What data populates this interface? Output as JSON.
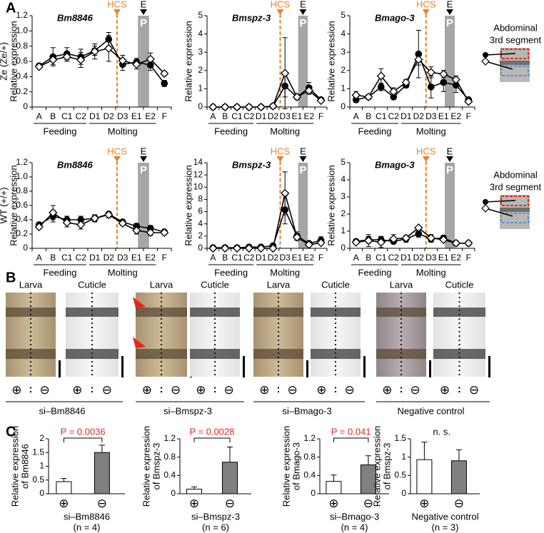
{
  "panels": [
    "A",
    "B",
    "C"
  ],
  "inset_label": [
    "Abdominal",
    "3rd segment"
  ],
  "panel_b": {
    "image_labels": [
      "Larva",
      "Cuticle"
    ],
    "signs": [
      "⊕",
      "⊖"
    ],
    "separator": ":",
    "groups": [
      "si–Bm8846",
      "si–Bmspz-3",
      "si–Bmago-3",
      "Negative control"
    ]
  },
  "chart_data": [
    {
      "type": "line",
      "title": "Bm8846",
      "ylabel": [
        "Ze (Ze/+)",
        "Relative expression"
      ],
      "categories": [
        "A",
        "B",
        "C1",
        "C2",
        "D1",
        "D2",
        "D3",
        "E1",
        "E2",
        "F"
      ],
      "groups": [
        {
          "label": "Feeding",
          "from": "A",
          "to": "C2"
        },
        {
          "label": "Molting",
          "from": "D1",
          "to": "E2"
        }
      ],
      "annotations": {
        "hcs": "HCS",
        "e": "E",
        "p": "P"
      },
      "ylim": [
        0,
        1.2
      ],
      "yticks": [
        0,
        0.2,
        0.4,
        0.6,
        0.8,
        {
          "value": 1,
          "label": "1.0"
        },
        1.2
      ],
      "series": [
        {
          "marker": "circle",
          "color": "#000000",
          "values": [
            0.54,
            0.66,
            0.7,
            0.66,
            0.74,
            0.89,
            0.56,
            0.59,
            0.55,
            0.31
          ],
          "errors": [
            0.03,
            0.12,
            0.08,
            0.1,
            0.06,
            0.09,
            0.08,
            0.05,
            0.07,
            0.04
          ]
        },
        {
          "marker": "diamond",
          "color": "#ffffff",
          "values": [
            0.53,
            0.62,
            0.66,
            0.62,
            0.73,
            0.77,
            0.61,
            0.56,
            0.63,
            0.44
          ],
          "errors": [
            0.02,
            0.06,
            0.06,
            0.1,
            0.1,
            0.17,
            0.07,
            0.06,
            0.08,
            0.03
          ]
        }
      ]
    },
    {
      "type": "line",
      "title": "Bmspz-3",
      "ylabel": [
        "Relative expression"
      ],
      "categories": [
        "A",
        "B",
        "C1",
        "C2",
        "D1",
        "D2",
        "D3",
        "E1",
        "E2",
        "F"
      ],
      "groups": [
        {
          "label": "Feeding",
          "from": "A",
          "to": "C2"
        },
        {
          "label": "Molting",
          "from": "D1",
          "to": "E2"
        }
      ],
      "annotations": {
        "hcs": "HCS",
        "e": "E",
        "p": "P"
      },
      "ylim": [
        0,
        5
      ],
      "yticks": [
        0,
        1,
        2,
        3,
        4,
        5
      ],
      "series": [
        {
          "marker": "circle",
          "color": "#000000",
          "values": [
            0,
            0,
            0,
            0,
            0,
            0.05,
            1.15,
            0.55,
            1.05,
            0.4
          ],
          "errors": [
            0,
            0,
            0,
            0,
            0,
            0.03,
            0.6,
            0.1,
            0.3,
            0.1
          ]
        },
        {
          "marker": "diamond",
          "color": "#ffffff",
          "values": [
            0,
            0,
            0,
            0,
            0,
            0.05,
            1.85,
            0.55,
            0.9,
            0.35
          ],
          "errors": [
            0,
            0,
            0,
            0,
            0,
            0.03,
            1.95,
            0.1,
            0.2,
            0.1
          ]
        }
      ]
    },
    {
      "type": "line",
      "title": "Bmago-3",
      "ylabel": [
        "Relative expression"
      ],
      "categories": [
        "A",
        "B",
        "C1",
        "C2",
        "D1",
        "D2",
        "D3",
        "E1",
        "E2",
        "F"
      ],
      "groups": [
        {
          "label": "Feeding",
          "from": "A",
          "to": "C2"
        },
        {
          "label": "Molting",
          "from": "D1",
          "to": "E2"
        }
      ],
      "annotations": {
        "hcs": "HCS",
        "e": "E",
        "p": "P"
      },
      "ylim": [
        0,
        5
      ],
      "yticks": [
        0,
        1,
        2,
        3,
        4,
        5
      ],
      "series": [
        {
          "marker": "circle",
          "color": "#000000",
          "values": [
            0.4,
            0.55,
            1.1,
            0.55,
            1.2,
            2.9,
            1.1,
            1.35,
            1.2,
            0.4
          ],
          "errors": [
            0.15,
            0.1,
            0.2,
            0.1,
            0.15,
            1.3,
            0.6,
            0.5,
            0.4,
            0.1
          ]
        },
        {
          "marker": "diamond",
          "color": "#ffffff",
          "values": [
            0.65,
            0.55,
            1.7,
            0.85,
            1.35,
            2.6,
            1.9,
            1.8,
            1.5,
            0.3
          ],
          "errors": [
            0.2,
            0.1,
            0.4,
            0.2,
            0.15,
            0.3,
            0.3,
            0.2,
            0.2,
            0.05
          ]
        }
      ]
    },
    {
      "type": "line",
      "title": "Bm8846",
      "ylabel": [
        "WT (+/+)",
        "Relative expression"
      ],
      "categories": [
        "A",
        "B",
        "C1",
        "C2",
        "D1",
        "D2",
        "D3",
        "E1",
        "E2",
        "F"
      ],
      "groups": [
        {
          "label": "Feeding",
          "from": "A",
          "to": "C2"
        },
        {
          "label": "Molting",
          "from": "D1",
          "to": "E2"
        }
      ],
      "annotations": {
        "hcs": "HCS",
        "e": "E",
        "p": "P"
      },
      "ylim": [
        0,
        1.2
      ],
      "yticks": [
        0,
        0.2,
        0.4,
        0.6,
        0.8,
        {
          "value": 1,
          "label": "1.0"
        },
        1.2
      ],
      "series": [
        {
          "marker": "circle",
          "color": "#000000",
          "values": [
            0.33,
            0.45,
            0.4,
            0.4,
            0.42,
            0.48,
            0.37,
            0.31,
            0.28,
            0.23
          ],
          "errors": [
            0.03,
            0.08,
            0.05,
            0.05,
            0.04,
            0.03,
            0.03,
            0.04,
            0.04,
            0.02
          ]
        },
        {
          "marker": "diamond",
          "color": "#ffffff",
          "values": [
            0.3,
            0.5,
            0.36,
            0.33,
            0.42,
            0.47,
            0.35,
            0.25,
            0.22,
            0.22
          ],
          "errors": [
            0.03,
            0.1,
            0.06,
            0.06,
            0.05,
            0.04,
            0.03,
            0.05,
            0.04,
            0.03
          ]
        }
      ]
    },
    {
      "type": "line",
      "title": "Bmspz-3",
      "ylabel": [
        "Relative expression"
      ],
      "categories": [
        "A",
        "B",
        "C1",
        "C2",
        "D1",
        "D2",
        "D3",
        "E1",
        "E2",
        "F"
      ],
      "groups": [
        {
          "label": "Feeding",
          "from": "A",
          "to": "C2"
        },
        {
          "label": "Molting",
          "from": "D1",
          "to": "E2"
        }
      ],
      "annotations": {
        "hcs": "HCS",
        "e": "E",
        "p": "P"
      },
      "ylim": [
        0,
        14
      ],
      "yticks": [
        0,
        2,
        4,
        6,
        8,
        10,
        12,
        14
      ],
      "series": [
        {
          "marker": "circle",
          "color": "#000000",
          "values": [
            0.1,
            0.1,
            0.1,
            0.2,
            0.2,
            0.4,
            6.3,
            2.0,
            0.8,
            1.3
          ],
          "errors": [
            0,
            0,
            0,
            0,
            0,
            0.2,
            2.3,
            0.7,
            0.3,
            0.6
          ]
        },
        {
          "marker": "diamond",
          "color": "#ffffff",
          "values": [
            0,
            0,
            0,
            0,
            0,
            0,
            9.0,
            1.8,
            0.6,
            0.9
          ],
          "errors": [
            0,
            0,
            0,
            0,
            0,
            0,
            3.5,
            0.5,
            0.2,
            0.3
          ]
        }
      ]
    },
    {
      "type": "line",
      "title": "Bmago-3",
      "ylabel": [
        "Relative expression"
      ],
      "categories": [
        "A",
        "B",
        "C1",
        "C2",
        "D1",
        "D2",
        "D3",
        "E1",
        "E2",
        "F"
      ],
      "groups": [
        {
          "label": "Feeding",
          "from": "A",
          "to": "C2"
        },
        {
          "label": "Molting",
          "from": "D1",
          "to": "E2"
        }
      ],
      "annotations": {
        "hcs": "HCS",
        "e": "E",
        "p": "P"
      },
      "ylim": [
        0,
        5
      ],
      "yticks": [
        0,
        1,
        2,
        3,
        4,
        5
      ],
      "series": [
        {
          "marker": "circle",
          "color": "#000000",
          "values": [
            0.4,
            0.5,
            0.5,
            0.4,
            0.55,
            0.85,
            0.55,
            0.6,
            0.3,
            0.3
          ],
          "errors": [
            0.1,
            0.2,
            0.2,
            0.1,
            0.2,
            0.2,
            0.2,
            0.15,
            0.05,
            0.05
          ]
        },
        {
          "marker": "diamond",
          "color": "#ffffff",
          "values": [
            0.35,
            0.45,
            0.35,
            0.55,
            0.6,
            1.2,
            0.6,
            0.5,
            0.3,
            0.3
          ],
          "errors": [
            0.1,
            0.35,
            0.3,
            0.25,
            0.15,
            0.1,
            0.2,
            0.1,
            0.05,
            0.05
          ]
        }
      ]
    },
    {
      "type": "bar",
      "ylabel": [
        "Relative expression",
        "of Bm8846"
      ],
      "xlabel": "si–Bm8846",
      "note": "(n = 4)",
      "annotation": "P = 0.0036",
      "annotation_color": "#e8251f",
      "bracket": true,
      "categories": [
        "⊕",
        "⊖"
      ],
      "values": [
        0.44,
        1.5
      ],
      "errors": [
        0.12,
        0.27
      ],
      "colors": [
        "#ffffff",
        "#808080"
      ],
      "ylim": [
        0,
        2
      ],
      "yticks": [
        0,
        0.5,
        1,
        1.5,
        2
      ]
    },
    {
      "type": "bar",
      "ylabel": [
        "Relative expression",
        "of Bmspz-3"
      ],
      "xlabel": "si–Bmspz-3",
      "note": "(n = 6)",
      "annotation": "P = 0.0028",
      "annotation_color": "#e8251f",
      "bracket": true,
      "categories": [
        "⊕",
        "⊖"
      ],
      "values": [
        0.1,
        0.69
      ],
      "errors": [
        0.05,
        0.33
      ],
      "colors": [
        "#ffffff",
        "#808080"
      ],
      "ylim": [
        0,
        1.2
      ],
      "yticks": [
        0,
        0.4,
        0.8,
        1.2
      ]
    },
    {
      "type": "bar",
      "ylabel": [
        "Relative expression",
        "of Bmago-3"
      ],
      "xlabel": "si–Bmago-3",
      "note": "(n = 4)",
      "annotation": "P = 0.041",
      "annotation_color": "#e8251f",
      "bracket": true,
      "categories": [
        "⊕",
        "⊖"
      ],
      "values": [
        0.27,
        0.63
      ],
      "errors": [
        0.14,
        0.2
      ],
      "colors": [
        "#ffffff",
        "#808080"
      ],
      "ylim": [
        0,
        1.2
      ],
      "yticks": [
        0,
        0.4,
        0.8,
        1.2
      ]
    },
    {
      "type": "bar",
      "ylabel": [
        "Relative expression",
        "of Bmspz-3"
      ],
      "xlabel": "Negative control",
      "note": "(n = 3)",
      "annotation": "n. s.",
      "annotation_color": "#000000",
      "bracket": false,
      "categories": [
        "⊕",
        "⊖"
      ],
      "values": [
        0.93,
        0.9
      ],
      "errors": [
        0.48,
        0.3
      ],
      "colors": [
        "#ffffff",
        "#808080"
      ],
      "ylim": [
        0,
        1.5
      ],
      "yticks": [
        0,
        0.5,
        1,
        1.5
      ]
    }
  ]
}
